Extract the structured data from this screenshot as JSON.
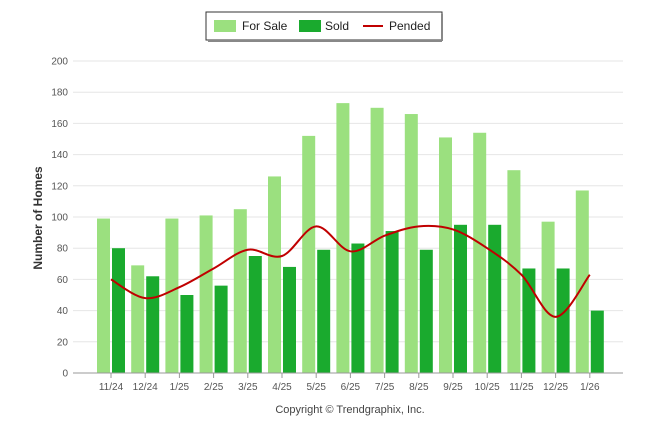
{
  "chart_data": {
    "type": "bar",
    "title": "",
    "xlabel": "",
    "ylabel": "Number of Homes",
    "ylim": [
      0,
      200
    ],
    "yticks": [
      0,
      20,
      40,
      60,
      80,
      100,
      120,
      140,
      160,
      180,
      200
    ],
    "categories": [
      "11/24",
      "12/24",
      "1/25",
      "2/25",
      "3/25",
      "4/25",
      "5/25",
      "6/25",
      "7/25",
      "8/25",
      "9/25",
      "10/25",
      "11/25",
      "12/25",
      "1/26"
    ],
    "series": [
      {
        "name": "For Sale",
        "kind": "bar",
        "color": "#9be07f",
        "values": [
          99,
          69,
          99,
          101,
          105,
          126,
          152,
          173,
          170,
          166,
          151,
          154,
          130,
          97,
          117
        ]
      },
      {
        "name": "Sold",
        "kind": "bar",
        "color": "#1aaa2e",
        "values": [
          80,
          62,
          50,
          56,
          75,
          68,
          79,
          83,
          91,
          79,
          95,
          95,
          67,
          67,
          40
        ]
      },
      {
        "name": "Pended",
        "kind": "line",
        "color": "#c00000",
        "values": [
          60,
          48,
          55,
          67,
          79,
          75,
          94,
          78,
          88,
          94,
          92,
          80,
          63,
          36,
          63
        ]
      }
    ],
    "legend": "top-center",
    "grid": true,
    "credit": "Copyright © Trendgraphix, Inc."
  }
}
